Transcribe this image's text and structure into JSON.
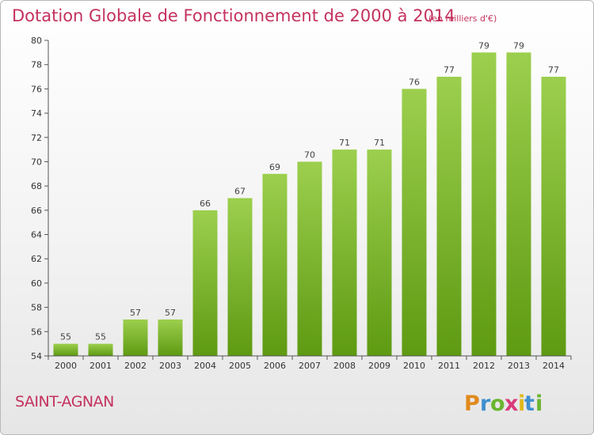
{
  "chart_data": {
    "type": "bar",
    "title": "Dotation Globale de Fonctionnement de 2000 à 2014",
    "unit_label": "(en milliers d'€)",
    "xlabel": "",
    "ylabel": "",
    "categories": [
      "2000",
      "2001",
      "2002",
      "2003",
      "2004",
      "2005",
      "2006",
      "2007",
      "2008",
      "2009",
      "2010",
      "2011",
      "2012",
      "2013",
      "2014"
    ],
    "values": [
      55,
      55,
      57,
      57,
      66,
      67,
      69,
      70,
      71,
      71,
      76,
      77,
      79,
      79,
      77
    ],
    "ylim": [
      54,
      80
    ],
    "yticks": [
      54,
      56,
      58,
      60,
      62,
      64,
      66,
      68,
      70,
      72,
      74,
      76,
      78,
      80
    ],
    "grid": false,
    "bar_color_top": "#9ccf4e",
    "bar_color_bottom": "#5e9a12"
  },
  "footer": {
    "commune": "SAINT-AGNAN",
    "logo_text": "Proxiti",
    "logo_letters": [
      "P",
      "r",
      "o",
      "x",
      "i",
      "t",
      "i"
    ],
    "logo_colors": [
      "#e08a1c",
      "#3f8fcf",
      "#6bb52f",
      "#d93a7a",
      "#e0b81c",
      "#3f8fcf",
      "#6bb52f"
    ]
  }
}
